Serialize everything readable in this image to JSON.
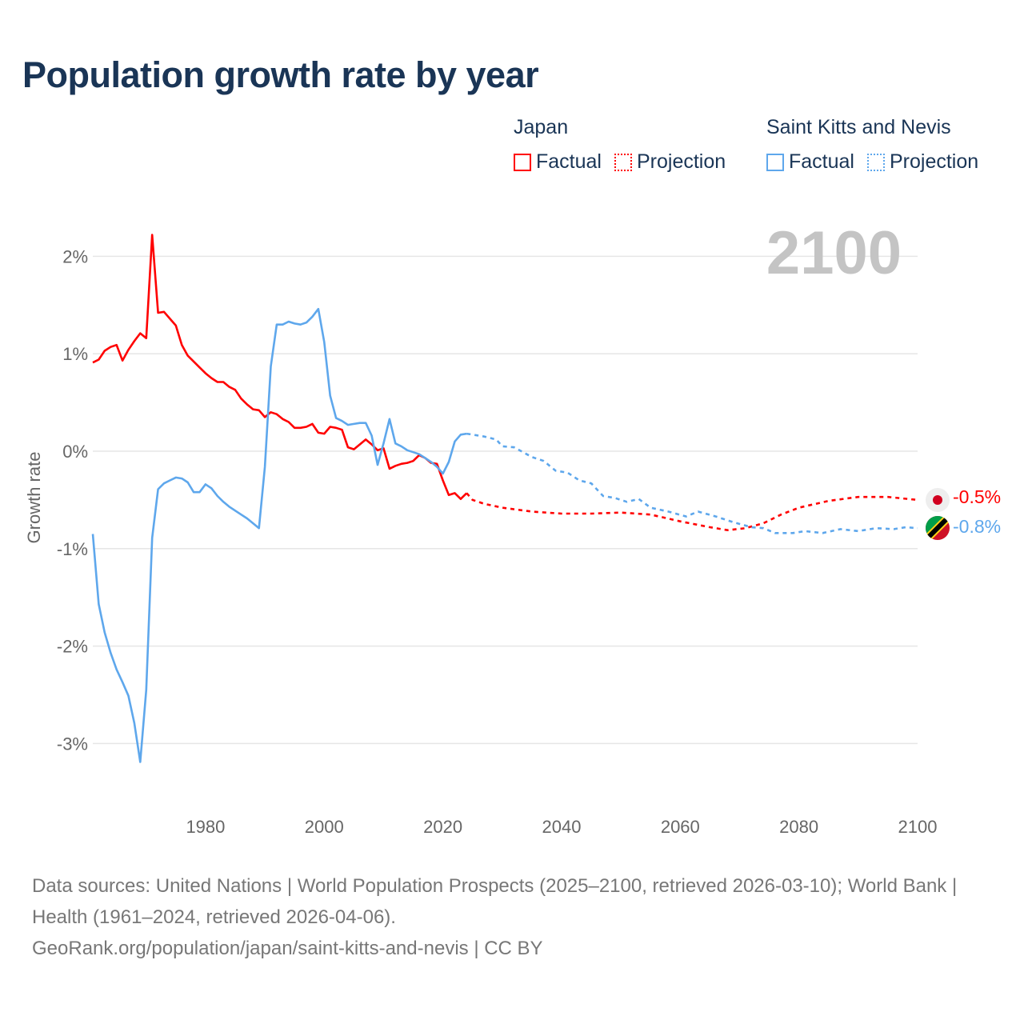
{
  "title": "Population growth rate by year",
  "legend": {
    "japan": {
      "name": "Japan",
      "factual": "Factual",
      "projection": "Projection"
    },
    "skn": {
      "name": "Saint Kitts and Nevis",
      "factual": "Factual",
      "projection": "Projection"
    }
  },
  "colors": {
    "japan": "#ff0000",
    "skn": "#5ea7ec"
  },
  "source": {
    "line1": "Data sources: United Nations | World Population Prospects (2025–2100, retrieved 2026-03-10); World Bank | Health (1961–2024, retrieved 2026-04-06).",
    "line2": "GeoRank.org/population/japan/saint-kitts-and-nevis | CC BY"
  },
  "chart_data": {
    "type": "line",
    "ylabel": "Growth rate",
    "current_year_label": "2100",
    "xlim": [
      1961,
      2100
    ],
    "ylim": [
      -3.4,
      2.4
    ],
    "xticks": [
      1980,
      2000,
      2020,
      2040,
      2060,
      2080,
      2100
    ],
    "xtick_labels": [
      "1980",
      "2000",
      "2020",
      "2040",
      "2060",
      "2080",
      "2100"
    ],
    "yticks": [
      2,
      1,
      0,
      -1,
      -2,
      -3
    ],
    "ytick_labels": [
      "2%",
      "1%",
      "0%",
      "-1%",
      "-2%",
      "-3%"
    ],
    "series": [
      {
        "name": "Japan",
        "kind": "factual",
        "color": "#ff0000",
        "x0": 1961,
        "values": [
          0.91,
          0.94,
          1.03,
          1.07,
          1.09,
          0.93,
          1.04,
          1.13,
          1.21,
          1.16,
          2.22,
          1.42,
          1.43,
          1.36,
          1.29,
          1.09,
          0.98,
          0.92,
          0.86,
          0.8,
          0.75,
          0.71,
          0.71,
          0.66,
          0.63,
          0.54,
          0.48,
          0.43,
          0.42,
          0.35,
          0.4,
          0.38,
          0.33,
          0.3,
          0.24,
          0.24,
          0.25,
          0.28,
          0.19,
          0.18,
          0.25,
          0.24,
          0.22,
          0.04,
          0.02,
          0.07,
          0.12,
          0.07,
          0.01,
          0.03,
          -0.18,
          -0.15,
          -0.13,
          -0.12,
          -0.1,
          -0.04,
          -0.07,
          -0.12,
          -0.13,
          -0.3,
          -0.45,
          -0.43,
          -0.49,
          -0.43
        ]
      },
      {
        "name": "Japan",
        "kind": "projection",
        "color": "#ff0000",
        "points": [
          [
            2024,
            -0.43
          ],
          [
            2025,
            -0.5
          ],
          [
            2027,
            -0.54
          ],
          [
            2030,
            -0.58
          ],
          [
            2035,
            -0.62
          ],
          [
            2040,
            -0.64
          ],
          [
            2045,
            -0.64
          ],
          [
            2050,
            -0.63
          ],
          [
            2055,
            -0.65
          ],
          [
            2060,
            -0.72
          ],
          [
            2065,
            -0.78
          ],
          [
            2068,
            -0.81
          ],
          [
            2071,
            -0.79
          ],
          [
            2074,
            -0.74
          ],
          [
            2077,
            -0.65
          ],
          [
            2080,
            -0.58
          ],
          [
            2085,
            -0.51
          ],
          [
            2090,
            -0.47
          ],
          [
            2095,
            -0.47
          ],
          [
            2100,
            -0.5
          ]
        ]
      },
      {
        "name": "Saint Kitts and Nevis",
        "kind": "factual",
        "color": "#5ea7ec",
        "x0": 1961,
        "values": [
          -0.85,
          -1.57,
          -1.86,
          -2.07,
          -2.24,
          -2.37,
          -2.51,
          -2.79,
          -3.19,
          -2.45,
          -0.89,
          -0.39,
          -0.33,
          -0.3,
          -0.27,
          -0.28,
          -0.32,
          -0.42,
          -0.42,
          -0.34,
          -0.38,
          -0.46,
          -0.52,
          -0.57,
          -0.61,
          -0.65,
          -0.69,
          -0.74,
          -0.79,
          -0.16,
          0.87,
          1.3,
          1.3,
          1.33,
          1.31,
          1.3,
          1.32,
          1.38,
          1.46,
          1.12,
          0.57,
          0.34,
          0.31,
          0.27,
          0.28,
          0.29,
          0.29,
          0.16,
          -0.14,
          0.08,
          0.33,
          0.08,
          0.05,
          0.01,
          -0.01,
          -0.03,
          -0.07,
          -0.11,
          -0.16,
          -0.23,
          -0.11,
          0.1,
          0.17,
          0.18
        ]
      },
      {
        "name": "Saint Kitts and Nevis",
        "kind": "projection",
        "color": "#5ea7ec",
        "points": [
          [
            2024,
            0.18
          ],
          [
            2027,
            0.15
          ],
          [
            2029,
            0.12
          ],
          [
            2030,
            0.05
          ],
          [
            2032,
            0.04
          ],
          [
            2035,
            -0.06
          ],
          [
            2037,
            -0.1
          ],
          [
            2039,
            -0.2
          ],
          [
            2041,
            -0.22
          ],
          [
            2043,
            -0.3
          ],
          [
            2045,
            -0.33
          ],
          [
            2047,
            -0.46
          ],
          [
            2049,
            -0.48
          ],
          [
            2051,
            -0.52
          ],
          [
            2053,
            -0.49
          ],
          [
            2055,
            -0.58
          ],
          [
            2058,
            -0.62
          ],
          [
            2061,
            -0.67
          ],
          [
            2063,
            -0.62
          ],
          [
            2066,
            -0.67
          ],
          [
            2069,
            -0.73
          ],
          [
            2072,
            -0.78
          ],
          [
            2074,
            -0.79
          ],
          [
            2076,
            -0.84
          ],
          [
            2079,
            -0.84
          ],
          [
            2081,
            -0.82
          ],
          [
            2084,
            -0.84
          ],
          [
            2087,
            -0.8
          ],
          [
            2090,
            -0.82
          ],
          [
            2093,
            -0.79
          ],
          [
            2096,
            -0.8
          ],
          [
            2098,
            -0.78
          ],
          [
            2100,
            -0.79
          ]
        ]
      }
    ],
    "end_labels": [
      {
        "name": "Japan",
        "text": "-0.5%",
        "value": -0.5,
        "color": "#ff0000"
      },
      {
        "name": "Saint Kitts and Nevis",
        "text": "-0.8%",
        "value": -0.8,
        "color": "#5ea7ec"
      }
    ]
  }
}
